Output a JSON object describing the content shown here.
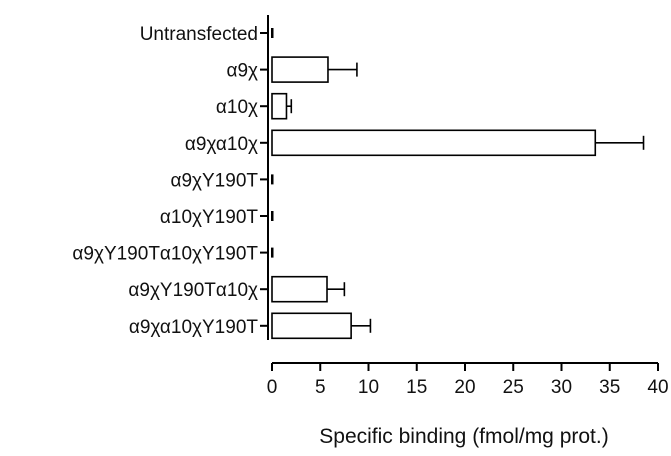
{
  "chart_data": {
    "type": "bar",
    "orientation": "horizontal",
    "categories": [
      "Untransfected",
      "α9χ",
      "α10χ",
      "α9χα10χ",
      "α9χY190T",
      "α10χY190T",
      "α9χY190Tα10χY190T",
      "α9χY190Tα10χ",
      "α9χα10χY190T"
    ],
    "values": [
      0,
      5.8,
      1.5,
      33.5,
      0,
      0,
      0,
      5.7,
      8.2
    ],
    "errors": [
      0,
      3.0,
      0.5,
      5.0,
      0,
      0,
      0,
      1.8,
      2.0
    ],
    "xlabel": "Specific binding (fmol/mg prot.)",
    "ylabel": "",
    "title": "",
    "xlim": [
      0,
      40
    ],
    "xticks": [
      0,
      5,
      10,
      15,
      20,
      25,
      30,
      35,
      40
    ],
    "grid": false,
    "bar_color": "#ffffff",
    "edge_color": "#000000"
  }
}
